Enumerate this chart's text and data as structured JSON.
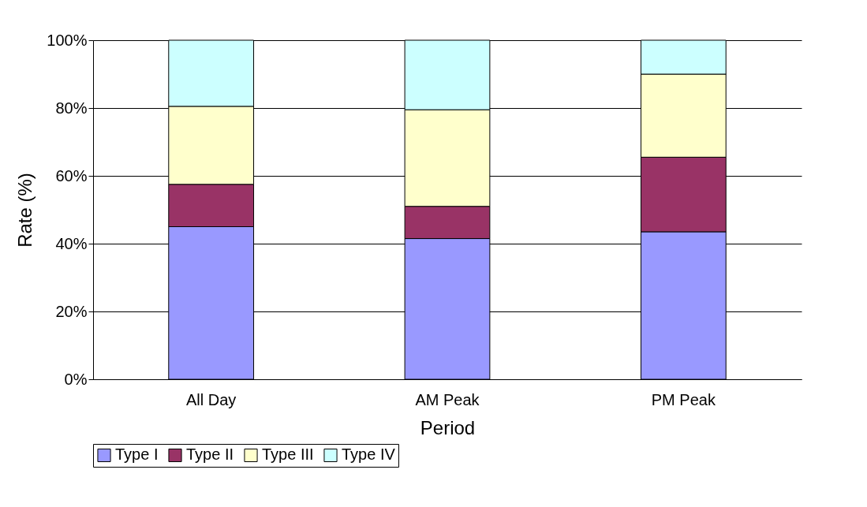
{
  "chart_data": {
    "type": "bar",
    "stacked": true,
    "xlabel": "Period",
    "ylabel": "Rate (%)",
    "categories": [
      "All Day",
      "AM Peak",
      "PM Peak"
    ],
    "series": [
      {
        "name": "Type I",
        "color": "#9999ff",
        "values": [
          45,
          41.5,
          43.5
        ]
      },
      {
        "name": "Type II",
        "color": "#993366",
        "values": [
          12.5,
          9.5,
          22
        ]
      },
      {
        "name": "Type III",
        "color": "#ffffcc",
        "values": [
          23,
          28.5,
          24.5
        ]
      },
      {
        "name": "Type IV",
        "color": "#ccffff",
        "values": [
          19.5,
          20.5,
          10
        ]
      }
    ],
    "ylim": [
      0,
      100
    ],
    "yticks": [
      {
        "value": 0,
        "label": "0%"
      },
      {
        "value": 20,
        "label": "20%"
      },
      {
        "value": 40,
        "label": "40%"
      },
      {
        "value": 60,
        "label": "60%"
      },
      {
        "value": 80,
        "label": "80%"
      },
      {
        "value": 100,
        "label": "100%"
      }
    ],
    "grid": "y",
    "legend": "bottom"
  }
}
